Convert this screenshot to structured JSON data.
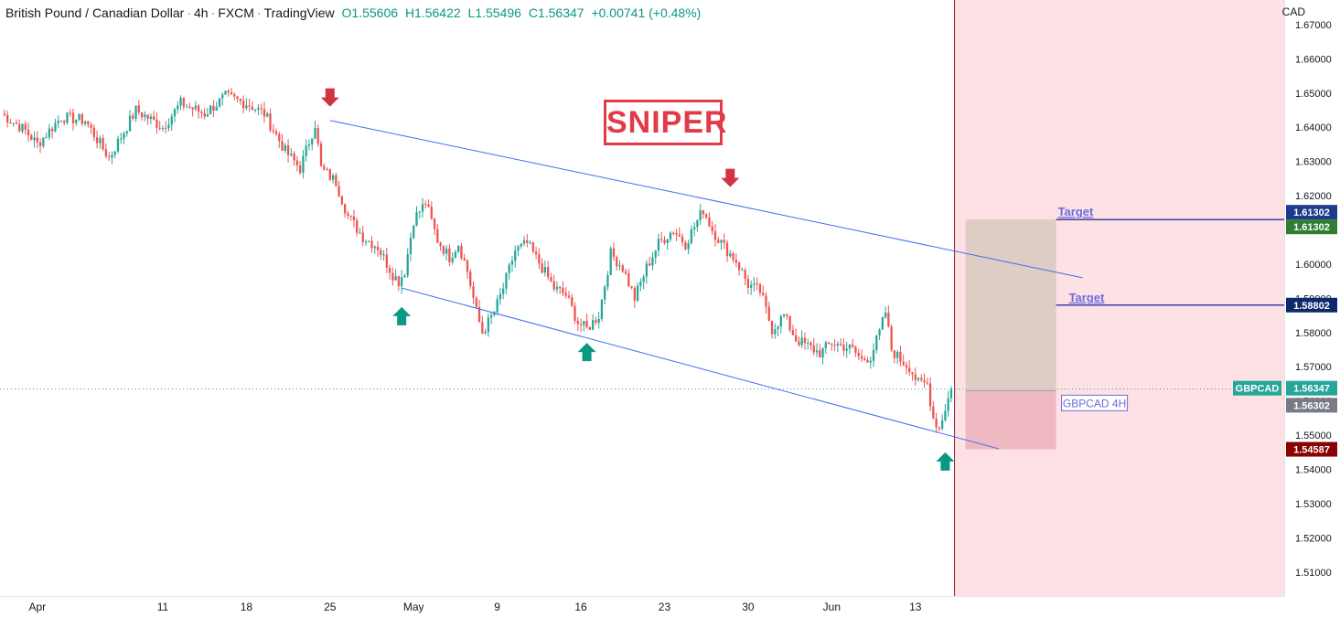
{
  "header": {
    "symbol": "British Pound / Canadian Dollar",
    "timeframe": "4h",
    "broker": "FXCM",
    "platform": "TradingView",
    "open": "O1.55606",
    "high": "H1.56422",
    "low": "L1.55496",
    "close": "C1.56347",
    "change": "+0.00741 (+0.48%)"
  },
  "currency": "CAD",
  "logo_text": "SNIPER",
  "chart_data": {
    "type": "candlestick",
    "instrument": "GBPCAD",
    "timeframe": "4h",
    "ylim": [
      1.503,
      1.6772
    ],
    "y_ticks": [
      "1.67000",
      "1.66000",
      "1.65000",
      "1.64000",
      "1.63000",
      "1.62000",
      "1.61000",
      "1.60000",
      "1.59000",
      "1.58000",
      "1.57000",
      "1.56000",
      "1.55000",
      "1.54000",
      "1.53000",
      "1.52000",
      "1.51000"
    ],
    "x_ticks": [
      {
        "label": "Apr",
        "index": 12
      },
      {
        "label": "11",
        "index": 54
      },
      {
        "label": "18",
        "index": 82
      },
      {
        "label": "25",
        "index": 110
      },
      {
        "label": "May",
        "index": 138
      },
      {
        "label": "9",
        "index": 166
      },
      {
        "label": "16",
        "index": 194
      },
      {
        "label": "23",
        "index": 222
      },
      {
        "label": "30",
        "index": 250
      },
      {
        "label": "Jun",
        "index": 278
      },
      {
        "label": "13",
        "index": 306
      }
    ],
    "last_index": 318,
    "total_slots": 430,
    "price_path": [
      [
        0,
        1.644
      ],
      [
        8,
        1.639
      ],
      [
        12,
        1.635
      ],
      [
        20,
        1.643
      ],
      [
        28,
        1.642
      ],
      [
        36,
        1.631
      ],
      [
        45,
        1.645
      ],
      [
        54,
        1.64
      ],
      [
        60,
        1.647
      ],
      [
        68,
        1.644
      ],
      [
        75,
        1.649
      ],
      [
        82,
        1.647
      ],
      [
        88,
        1.644
      ],
      [
        95,
        1.633
      ],
      [
        100,
        1.628
      ],
      [
        105,
        1.641
      ],
      [
        107,
        1.628
      ],
      [
        112,
        1.624
      ],
      [
        116,
        1.614
      ],
      [
        121,
        1.608
      ],
      [
        126,
        1.605
      ],
      [
        131,
        1.597
      ],
      [
        133,
        1.595
      ],
      [
        135,
        1.598
      ],
      [
        138,
        1.613
      ],
      [
        142,
        1.618
      ],
      [
        146,
        1.607
      ],
      [
        150,
        1.602
      ],
      [
        153,
        1.606
      ],
      [
        156,
        1.598
      ],
      [
        159,
        1.586
      ],
      [
        161,
        1.58
      ],
      [
        165,
        1.586
      ],
      [
        168,
        1.593
      ],
      [
        172,
        1.604
      ],
      [
        176,
        1.606
      ],
      [
        181,
        1.599
      ],
      [
        185,
        1.593
      ],
      [
        189,
        1.591
      ],
      [
        193,
        1.583
      ],
      [
        196,
        1.581
      ],
      [
        200,
        1.585
      ],
      [
        204,
        1.603
      ],
      [
        208,
        1.599
      ],
      [
        212,
        1.59
      ],
      [
        216,
        1.599
      ],
      [
        220,
        1.606
      ],
      [
        225,
        1.61
      ],
      [
        229,
        1.606
      ],
      [
        232,
        1.611
      ],
      [
        235,
        1.616
      ],
      [
        238,
        1.61
      ],
      [
        242,
        1.605
      ],
      [
        246,
        1.601
      ],
      [
        250,
        1.594
      ],
      [
        254,
        1.592
      ],
      [
        258,
        1.581
      ],
      [
        262,
        1.585
      ],
      [
        266,
        1.578
      ],
      [
        270,
        1.576
      ],
      [
        274,
        1.574
      ],
      [
        278,
        1.577
      ],
      [
        282,
        1.576
      ],
      [
        285,
        1.575
      ],
      [
        288,
        1.572
      ],
      [
        291,
        1.573
      ],
      [
        294,
        1.58
      ],
      [
        296,
        1.586
      ],
      [
        298,
        1.575
      ],
      [
        301,
        1.572
      ],
      [
        304,
        1.57
      ],
      [
        307,
        1.565
      ],
      [
        310,
        1.565
      ],
      [
        312,
        1.555
      ],
      [
        314,
        1.552
      ],
      [
        316,
        1.558
      ],
      [
        318,
        1.5635
      ]
    ],
    "last_price": "1.56347",
    "price_labels": [
      {
        "text": "1.61302",
        "price": 1.61302,
        "color": "#1e3a8a",
        "offset": -8
      },
      {
        "text": "1.61302",
        "price": 1.61302,
        "color": "#2e7d32",
        "offset": 8
      },
      {
        "text": "1.58802",
        "price": 1.58802,
        "color": "#0d2a6b",
        "offset": 0
      },
      {
        "text": "1.56347",
        "price": 1.56347,
        "color": "#26a69a",
        "offset": -1
      },
      {
        "text": "1.56302",
        "price": 1.56302,
        "color": "#787b86",
        "offset": 16
      },
      {
        "text": "1.54587",
        "price": 1.54587,
        "color": "#8b0000",
        "offset": 0
      }
    ],
    "symbol_tag": "GBPCAD",
    "position": {
      "entry": 1.56302,
      "stop": 1.54587,
      "target": 1.61302,
      "label": "GBPCAD 4H"
    },
    "targets": [
      {
        "label": "Target",
        "price": 1.61302
      },
      {
        "label": "Target",
        "price": 1.58802
      }
    ],
    "channel": {
      "upper": [
        [
          110,
          1.642
        ],
        [
          362,
          1.596
        ]
      ],
      "lower": [
        [
          134,
          1.593
        ],
        [
          334,
          1.546
        ]
      ]
    },
    "arrows": [
      {
        "index": 110,
        "price": 1.6455,
        "dir": "down"
      },
      {
        "index": 244,
        "price": 1.622,
        "dir": "down"
      },
      {
        "index": 134,
        "price": 1.588,
        "dir": "up"
      },
      {
        "index": 196,
        "price": 1.5775,
        "dir": "up"
      },
      {
        "index": 316,
        "price": 1.5455,
        "dir": "up"
      }
    ],
    "colors": {
      "up": "#26a69a",
      "down": "#ef5350",
      "channel": "#3d6ff0",
      "target": "#3f3fa0",
      "reward": "#d8c8c0",
      "risk": "#ecb5bb",
      "future_zone": "#fde1e4",
      "vline": "#9b1c31"
    }
  }
}
